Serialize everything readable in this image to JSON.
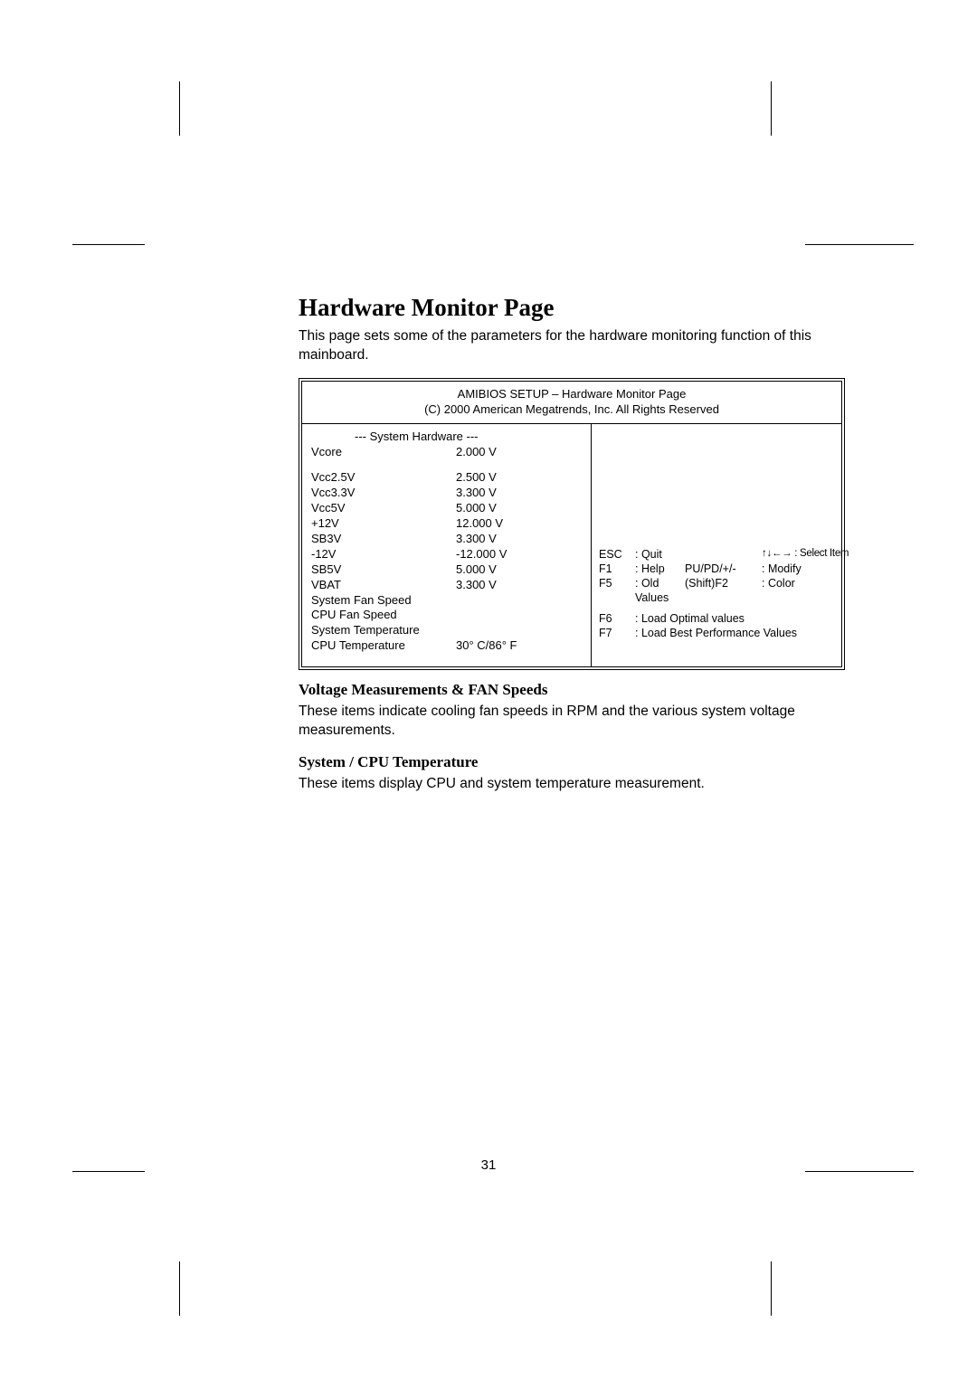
{
  "page": {
    "title": "Hardware Monitor Page",
    "intro": "This page sets some of the parameters for the hardware monitoring function of this mainboard.",
    "page_number": "31"
  },
  "bios": {
    "header_line1": "AMIBIOS SETUP – Hardware Monitor Page",
    "header_line2": "(C) 2000 American Megatrends, Inc. All Rights Reserved",
    "section_title": "--- System Hardware   ---",
    "rows1": [
      {
        "k": "Vcore",
        "v": "2.000 V"
      }
    ],
    "rows2": [
      {
        "k": "Vcc2.5V",
        "v": "2.500 V"
      },
      {
        "k": "Vcc3.3V",
        "v": "3.300 V"
      },
      {
        "k": "Vcc5V",
        "v": "5.000 V"
      },
      {
        "k": "+12V",
        "v": "12.000 V"
      },
      {
        "k": "SB3V",
        "v": "3.300 V"
      },
      {
        "k": "-12V",
        "v": "-12.000 V"
      },
      {
        "k": "SB5V",
        "v": "5.000 V"
      },
      {
        "k": "VBAT",
        "v": "3.300 V"
      },
      {
        "k": "System Fan Speed",
        "v": ""
      },
      {
        "k": "CPU Fan Speed",
        "v": ""
      },
      {
        "k": "System Temperature",
        "v": ""
      },
      {
        "k": "CPU Temperature",
        "v": "30° C/86° F"
      }
    ],
    "help": {
      "esc_k": "ESC",
      "esc_d": ":  Quit",
      "arrows_label": "↑↓←→ : Select Item",
      "f1_k": "F1",
      "f1_d": ":  Help",
      "pupd_k": "PU/PD/+/-",
      "pupd_d": ":  Modify",
      "f5_k": "F5",
      "f5_d": ":  Old Values",
      "sf2_k": "(Shift)F2",
      "sf2_d": ":  Color",
      "f6_k": "F6",
      "f6_d": ":  Load Optimal values",
      "f7_k": "F7",
      "f7_d": ":  Load Best Performance Values"
    }
  },
  "sections": {
    "s1_head": "Voltage Measurements & FAN Speeds",
    "s1_body": "These items indicate cooling fan speeds in RPM and the various system voltage measurements.",
    "s2_head": "System / CPU Temperature",
    "s2_body": "These items display CPU and system temperature measurement."
  }
}
